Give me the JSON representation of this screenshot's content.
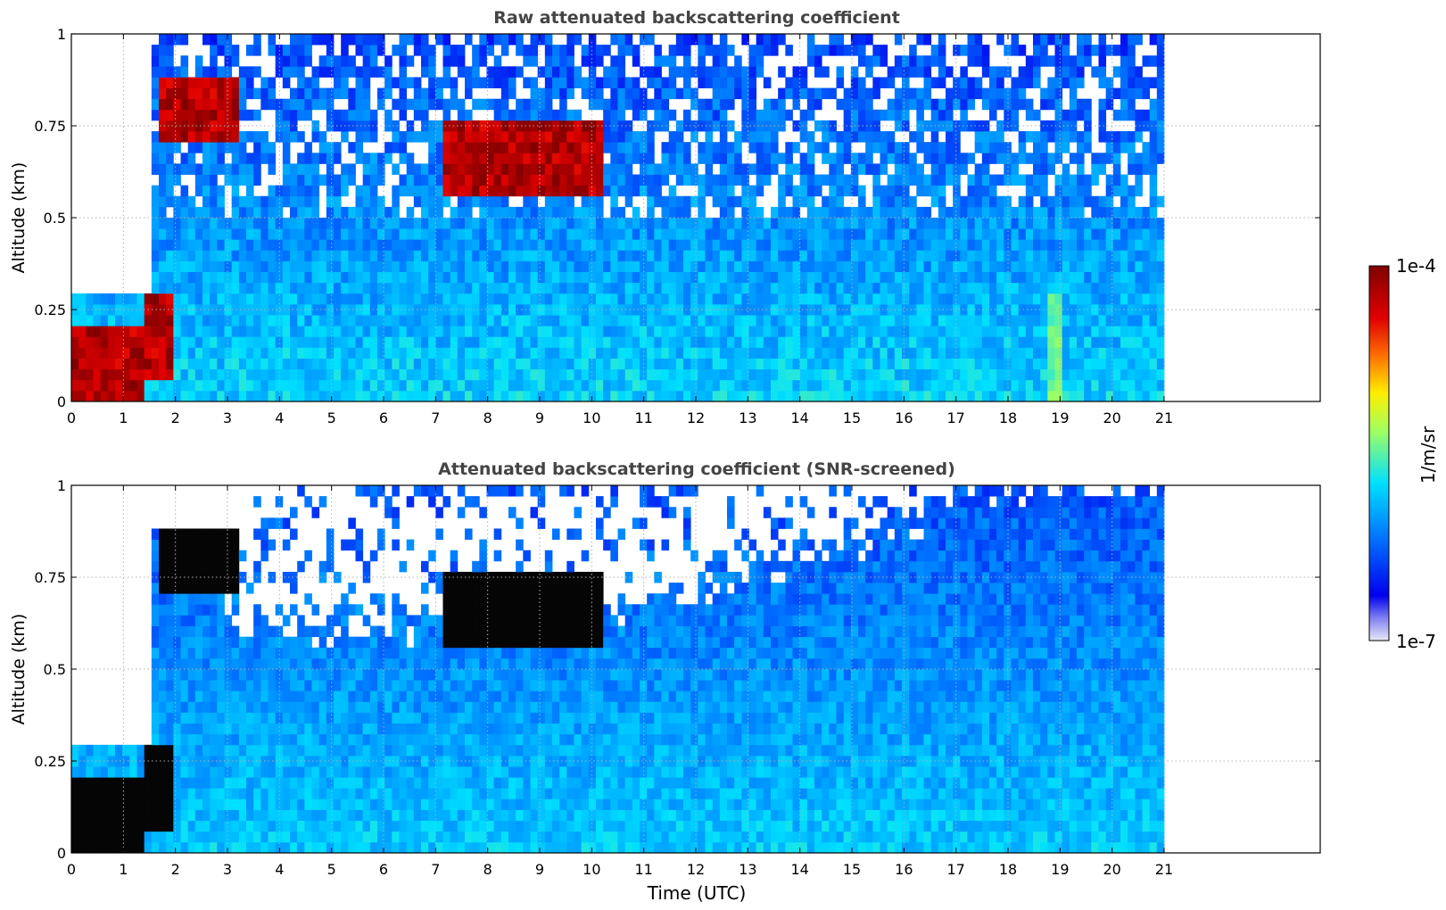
{
  "chart_data": [
    {
      "type": "heatmap",
      "title": "Raw attenuated backscattering coefficient",
      "xlabel": "",
      "ylabel": "Altitude (km)",
      "xlim": [
        0,
        24
      ],
      "ylim": [
        0,
        1
      ],
      "xticks": [
        0,
        1,
        2,
        3,
        4,
        5,
        6,
        7,
        8,
        9,
        10,
        11,
        12,
        13,
        14,
        15,
        16,
        17,
        18,
        19,
        20,
        21
      ],
      "yticks": [
        0,
        0.25,
        0.5,
        0.75,
        1
      ],
      "ytick_labels": [
        "0",
        "0.25",
        "0.5",
        "0.75",
        "1"
      ],
      "grid": true,
      "data_extent_hours": [
        0,
        21
      ],
      "features": [
        {
          "x": [
            0,
            1.4
          ],
          "y": [
            0,
            0.2
          ],
          "level": "high"
        },
        {
          "x": [
            1.4,
            2.0
          ],
          "y": [
            0.05,
            0.28
          ],
          "level": "high"
        },
        {
          "x": [
            1.7,
            3.2
          ],
          "y": [
            0.72,
            0.88
          ],
          "level": "high"
        },
        {
          "x": [
            7.2,
            10.2
          ],
          "y": [
            0.55,
            0.75
          ],
          "level": "high"
        },
        {
          "x": [
            18.7,
            19.0
          ],
          "y": [
            0,
            0.3
          ],
          "level": "medium"
        }
      ]
    },
    {
      "type": "heatmap",
      "title": "Attenuated backscattering coefficient (SNR-screened)",
      "xlabel": "Time (UTC)",
      "ylabel": "Altitude (km)",
      "xlim": [
        0,
        24
      ],
      "ylim": [
        0,
        1
      ],
      "xticks": [
        0,
        1,
        2,
        3,
        4,
        5,
        6,
        7,
        8,
        9,
        10,
        11,
        12,
        13,
        14,
        15,
        16,
        17,
        18,
        19,
        20,
        21
      ],
      "yticks": [
        0,
        0.25,
        0.5,
        0.75,
        1
      ],
      "ytick_labels": [
        "0",
        "0.25",
        "0.5",
        "0.75",
        "1"
      ],
      "grid": true,
      "data_extent_hours": [
        0,
        21
      ],
      "features": [
        {
          "x": [
            0,
            1.4
          ],
          "y": [
            0,
            0.2
          ],
          "level": "saturated"
        },
        {
          "x": [
            1.4,
            2.0
          ],
          "y": [
            0.05,
            0.28
          ],
          "level": "saturated"
        },
        {
          "x": [
            1.7,
            3.2
          ],
          "y": [
            0.72,
            0.88
          ],
          "level": "saturated"
        },
        {
          "x": [
            7.2,
            10.2
          ],
          "y": [
            0.55,
            0.75
          ],
          "level": "saturated"
        }
      ]
    }
  ],
  "colorbar": {
    "label": "1/m/sr",
    "max_label": "1e-4",
    "min_label": "1e-7",
    "colors": [
      "#e8e8f8",
      "#0000ee",
      "#0078ff",
      "#00e0ff",
      "#a0ff60",
      "#ffee00",
      "#ff7000",
      "#e00000",
      "#800000"
    ]
  }
}
